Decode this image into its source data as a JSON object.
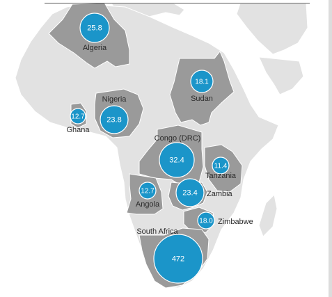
{
  "colors": {
    "sea": "#ffffff",
    "land_other": "#e2e2e2",
    "land_highlight": "#9a9a9a",
    "border": "#ffffff",
    "bubble_fill": "#1b95c9",
    "bubble_stroke": "#ffffff",
    "bubble_text": "#ffffff",
    "label_text": "#2b2b2b",
    "top_rule": "#555555",
    "side_bar": "#dcdcdc"
  },
  "map": {
    "region": "Africa",
    "bubbles": [
      {
        "country": "Algeria",
        "value": "25.8",
        "amount": 25.8
      },
      {
        "country": "Sudan",
        "value": "18.1",
        "amount": 18.1
      },
      {
        "country": "Nigeria",
        "value": "23.8",
        "amount": 23.8
      },
      {
        "country": "Ghana",
        "value": "12.7",
        "amount": 12.7
      },
      {
        "country": "Congo (DRC)",
        "value": "32.4",
        "amount": 32.4
      },
      {
        "country": "Tanzania",
        "value": "11.4",
        "amount": 11.4
      },
      {
        "country": "Angola",
        "value": "12.7",
        "amount": 12.7
      },
      {
        "country": "Zambia",
        "value": "23.4",
        "amount": 23.4
      },
      {
        "country": "Zimbabwe",
        "value": "18.0",
        "amount": 18.0
      },
      {
        "country": "South Africa",
        "value": "472",
        "amount": 472
      }
    ]
  }
}
